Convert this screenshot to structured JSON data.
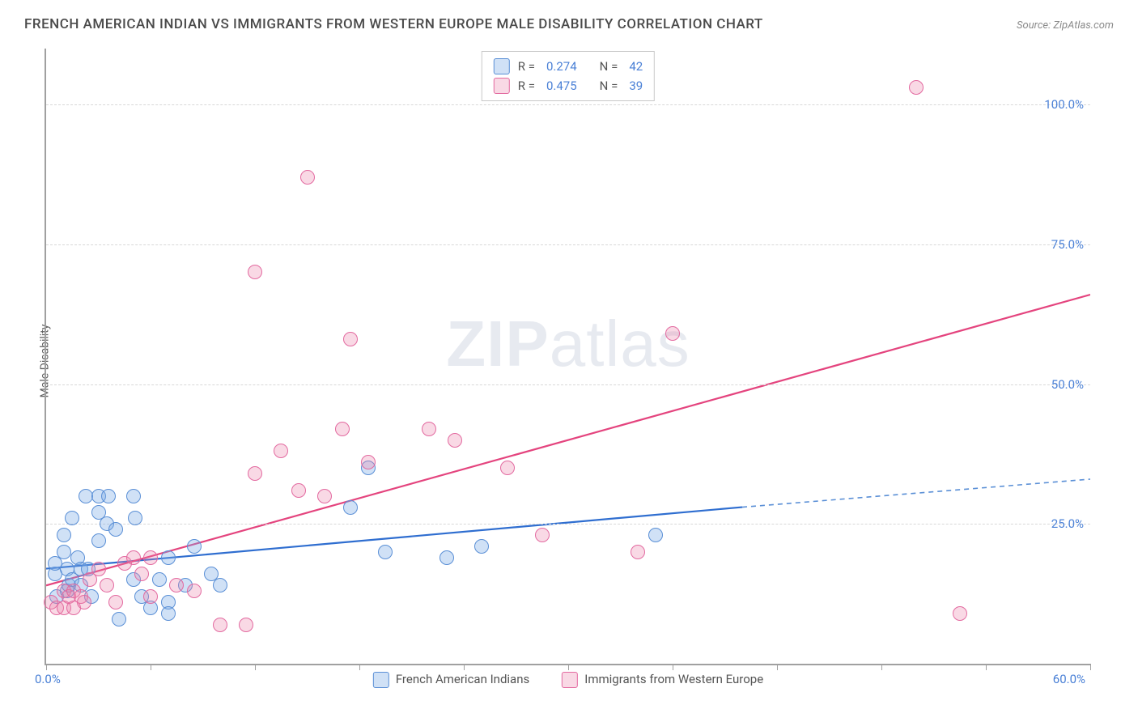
{
  "title": "FRENCH AMERICAN INDIAN VS IMMIGRANTS FROM WESTERN EUROPE MALE DISABILITY CORRELATION CHART",
  "source": "Source: ZipAtlas.com",
  "y_axis_label": "Male Disability",
  "watermark": {
    "bold": "ZIP",
    "light": "atlas"
  },
  "chart": {
    "type": "scatter",
    "xlim": [
      0,
      60
    ],
    "ylim": [
      0,
      110
    ],
    "x_ticks": [
      0,
      6,
      12,
      18,
      24,
      30,
      36,
      42,
      48,
      54,
      60
    ],
    "x_origin_label": "0.0%",
    "x_max_label": "60.0%",
    "y_gridlines": [
      25,
      50,
      75,
      100
    ],
    "y_tick_labels": [
      "25.0%",
      "50.0%",
      "75.0%",
      "100.0%"
    ],
    "background_color": "#ffffff",
    "grid_color": "#d8d8d8",
    "axis_color": "#a0a0a0",
    "marker_radius": 9,
    "marker_border_width": 1.3,
    "series": [
      {
        "name": "French American Indians",
        "fill": "rgba(120,170,230,0.35)",
        "stroke": "#5a8fd6",
        "r_value": "0.274",
        "n_value": "42",
        "trend": {
          "x1": 0,
          "y1": 17,
          "x2": 40,
          "y2": 28,
          "color": "#2f6ed0",
          "width": 2.2
        },
        "trend_extra": {
          "x1": 40,
          "y1": 28,
          "x2": 60,
          "y2": 33,
          "color": "#5a8fd6",
          "width": 1.6,
          "dash": "6 5"
        },
        "points": [
          [
            0.5,
            16
          ],
          [
            0.5,
            18
          ],
          [
            0.6,
            12
          ],
          [
            1.0,
            20
          ],
          [
            1.0,
            23
          ],
          [
            1.2,
            13
          ],
          [
            1.2,
            17
          ],
          [
            1.3,
            14
          ],
          [
            1.5,
            26
          ],
          [
            1.5,
            15
          ],
          [
            1.8,
            19
          ],
          [
            2.0,
            17
          ],
          [
            2.0,
            14
          ],
          [
            2.3,
            30
          ],
          [
            2.4,
            17
          ],
          [
            2.6,
            12
          ],
          [
            3.0,
            27
          ],
          [
            3.0,
            30
          ],
          [
            3.0,
            22
          ],
          [
            3.5,
            25
          ],
          [
            3.6,
            30
          ],
          [
            4.0,
            24
          ],
          [
            4.2,
            8
          ],
          [
            5.0,
            30
          ],
          [
            5.0,
            15
          ],
          [
            5.1,
            26
          ],
          [
            5.5,
            12
          ],
          [
            6.0,
            10
          ],
          [
            6.5,
            15
          ],
          [
            7.0,
            19
          ],
          [
            7.0,
            11
          ],
          [
            7.0,
            9
          ],
          [
            8.0,
            14
          ],
          [
            8.5,
            21
          ],
          [
            9.5,
            16
          ],
          [
            10.0,
            14
          ],
          [
            17.5,
            28
          ],
          [
            18.5,
            35
          ],
          [
            19.5,
            20
          ],
          [
            23.0,
            19
          ],
          [
            25.0,
            21
          ],
          [
            35.0,
            23
          ]
        ]
      },
      {
        "name": "Immigrants from Western Europe",
        "fill": "rgba(235,130,170,0.30)",
        "stroke": "#e36aa0",
        "r_value": "0.475",
        "n_value": "39",
        "trend": {
          "x1": 0,
          "y1": 14,
          "x2": 60,
          "y2": 66,
          "color": "#e4447e",
          "width": 2.2
        },
        "points": [
          [
            0.3,
            11
          ],
          [
            0.6,
            10
          ],
          [
            1.0,
            10
          ],
          [
            1.0,
            13
          ],
          [
            1.3,
            12
          ],
          [
            1.6,
            10
          ],
          [
            1.6,
            13
          ],
          [
            2.0,
            12
          ],
          [
            2.2,
            11
          ],
          [
            2.5,
            15
          ],
          [
            3.0,
            17
          ],
          [
            3.5,
            14
          ],
          [
            4.0,
            11
          ],
          [
            4.5,
            18
          ],
          [
            5.0,
            19
          ],
          [
            5.5,
            16
          ],
          [
            6.0,
            12
          ],
          [
            6.0,
            19
          ],
          [
            7.5,
            14
          ],
          [
            8.5,
            13
          ],
          [
            10.0,
            7
          ],
          [
            11.5,
            7
          ],
          [
            12.0,
            34
          ],
          [
            12.0,
            70
          ],
          [
            13.5,
            38
          ],
          [
            14.5,
            31
          ],
          [
            15.0,
            87
          ],
          [
            16.0,
            30
          ],
          [
            17.0,
            42
          ],
          [
            17.5,
            58
          ],
          [
            18.5,
            36
          ],
          [
            22.0,
            42
          ],
          [
            23.5,
            40
          ],
          [
            26.5,
            35
          ],
          [
            28.5,
            23
          ],
          [
            34.0,
            20
          ],
          [
            36.0,
            59
          ],
          [
            50.0,
            103
          ],
          [
            52.5,
            9
          ]
        ]
      }
    ]
  },
  "legend_top": {
    "r_label": "R =",
    "n_label": "N ="
  },
  "legend_bottom_labels": [
    "French American Indians",
    "Immigrants from Western Europe"
  ]
}
